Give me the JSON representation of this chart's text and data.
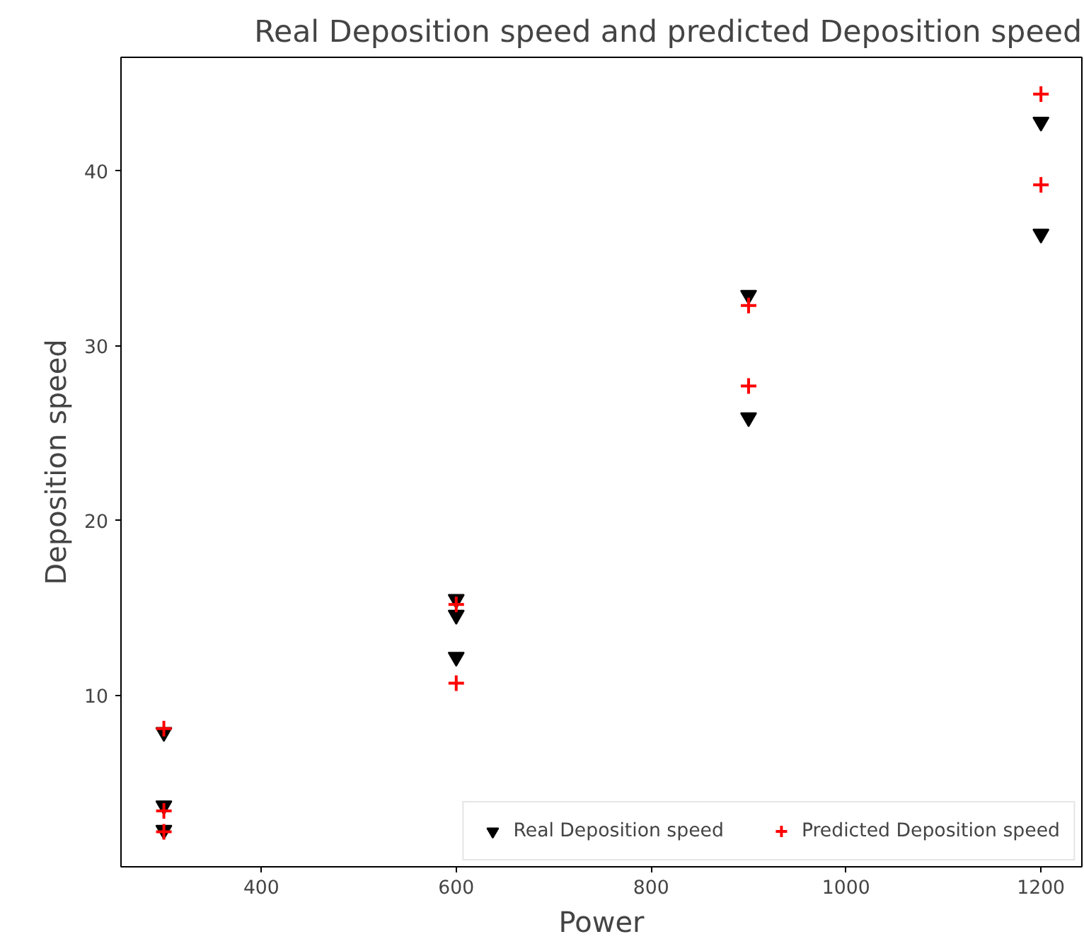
{
  "chart_data": {
    "type": "scatter",
    "title": "Real Deposition speed and predicted Deposition speed",
    "xlabel": "Power",
    "ylabel": "Deposition speed",
    "series": [
      {
        "name": "Real Deposition speed",
        "color": "#000000",
        "marker": "triangle",
        "x": [
          300,
          300,
          300,
          600,
          600,
          600,
          900,
          900,
          1200,
          1200
        ],
        "values": [
          7.9,
          3.7,
          2.3,
          15.5,
          14.6,
          12.2,
          32.9,
          25.9,
          42.8,
          36.4
        ]
      },
      {
        "name": "Predicted Deposition speed",
        "color": "#ff0000",
        "marker": "cross",
        "x": [
          300,
          300,
          300,
          600,
          600,
          900,
          900,
          1200,
          1200
        ],
        "values": [
          8.1,
          3.4,
          2.2,
          15.2,
          10.7,
          32.3,
          27.7,
          44.4,
          39.2
        ]
      }
    ],
    "xlim": [
      256,
      1242
    ],
    "ylim": [
      0.2,
      46.5
    ],
    "xticks": [
      400,
      600,
      800,
      1000,
      1200
    ],
    "yticks": [
      10,
      20,
      30,
      40
    ],
    "grid": false,
    "legend": "bottom right"
  }
}
